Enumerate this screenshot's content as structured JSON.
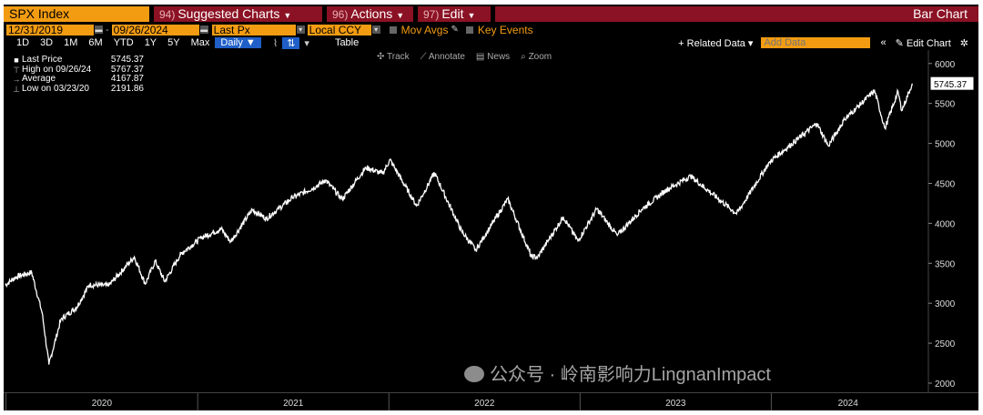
{
  "header": {
    "ticker": "SPX Index",
    "menus": [
      {
        "num": "94)",
        "label": "Suggested Charts"
      },
      {
        "num": "96)",
        "label": "Actions"
      },
      {
        "num": "97)",
        "label": "Edit"
      }
    ],
    "chart_type": "Bar Chart"
  },
  "controls": {
    "start_date": "12/31/2019",
    "end_date": "09/26/2024",
    "field": "Last Px",
    "currency": "Local CCY",
    "mov_avgs": "Mov Avgs",
    "key_events": "Key Events"
  },
  "ranges": [
    "1D",
    "3D",
    "1M",
    "6M",
    "YTD",
    "1Y",
    "5Y",
    "Max"
  ],
  "frequency": "Daily",
  "table_label": "Table",
  "related_data": "Related Data",
  "add_data_placeholder": "Add Data",
  "edit_chart": "Edit Chart",
  "toolbar_items": [
    "Track",
    "Annotate",
    "News",
    "Zoom"
  ],
  "legend": [
    {
      "label": "Last Price",
      "value": "5745.37"
    },
    {
      "label": "High on 09/26/24",
      "value": "5767.37"
    },
    {
      "label": "Average",
      "value": "4167.87"
    },
    {
      "label": "Low on 03/23/20",
      "value": "2191.86"
    }
  ],
  "last_price_tag": "5745.37",
  "watermark": "公众号 · 岭南影响力LingnanImpact",
  "colors": {
    "accent": "#f39c12",
    "menu": "#8b1224",
    "line": "#ffffff",
    "background": "#000000"
  },
  "chart_data": {
    "type": "line",
    "title": "SPX Index",
    "xlabel": "",
    "ylabel": "",
    "ylim": [
      2000,
      6100
    ],
    "yticks": [
      2000,
      2500,
      3000,
      3500,
      4000,
      4500,
      5000,
      5500,
      6000
    ],
    "year_labels": [
      "2020",
      "2021",
      "2022",
      "2023",
      "2024"
    ],
    "grid": false,
    "series": [
      {
        "name": "Last Price",
        "x": [
          "2019-12-31",
          "2020-01-20",
          "2020-02-19",
          "2020-03-10",
          "2020-03-23",
          "2020-04-15",
          "2020-05-15",
          "2020-06-08",
          "2020-07-15",
          "2020-09-02",
          "2020-09-23",
          "2020-10-12",
          "2020-10-30",
          "2020-11-30",
          "2021-01-08",
          "2021-02-15",
          "2021-03-05",
          "2021-04-15",
          "2021-05-12",
          "2021-07-01",
          "2021-08-15",
          "2021-09-02",
          "2021-10-04",
          "2021-11-18",
          "2021-12-20",
          "2022-01-03",
          "2022-02-23",
          "2022-03-29",
          "2022-05-20",
          "2022-06-16",
          "2022-08-16",
          "2022-09-30",
          "2022-10-12",
          "2022-11-30",
          "2022-12-28",
          "2023-02-02",
          "2023-03-13",
          "2023-04-28",
          "2023-06-15",
          "2023-07-31",
          "2023-10-27",
          "2023-12-29",
          "2024-03-28",
          "2024-04-19",
          "2024-05-20",
          "2024-07-16",
          "2024-08-05",
          "2024-08-30",
          "2024-09-06",
          "2024-09-26"
        ],
        "y": [
          3230,
          3330,
          3386,
          2880,
          2237,
          2800,
          2950,
          3230,
          3220,
          3580,
          3240,
          3530,
          3270,
          3620,
          3820,
          3930,
          3770,
          4170,
          4060,
          4320,
          4460,
          4540,
          4300,
          4700,
          4620,
          4796,
          4220,
          4630,
          3900,
          3667,
          4305,
          3585,
          3577,
          4080,
          3780,
          4180,
          3850,
          4170,
          4420,
          4590,
          4120,
          4770,
          5250,
          4970,
          5300,
          5660,
          5190,
          5650,
          5410,
          5745
        ]
      }
    ]
  }
}
